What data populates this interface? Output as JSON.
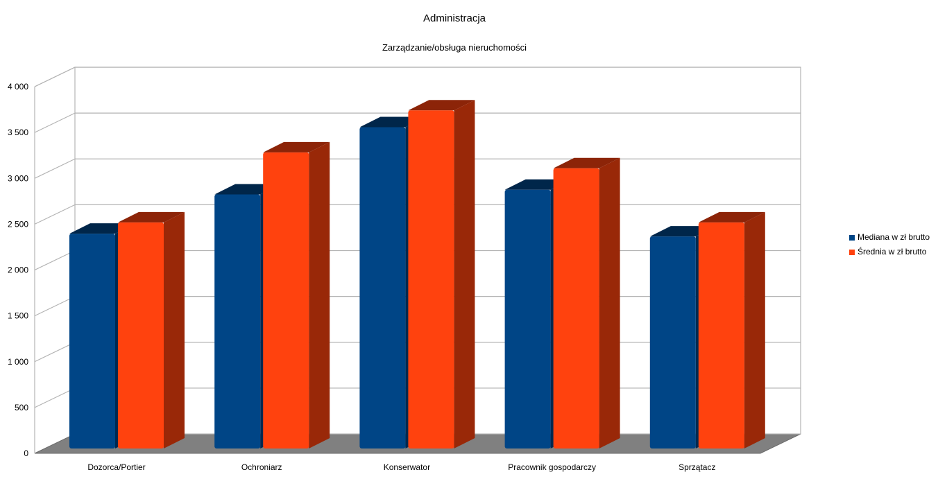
{
  "chart_data": {
    "type": "bar",
    "title": "Administracja",
    "subtitle": "Zarządzanie/obsługa nieruchomości",
    "xlabel": "",
    "ylabel": "",
    "categories": [
      "Dozorca/Portier",
      "Ochroniarz",
      "Konserwator",
      "Pracownik gospodarczy",
      "Sprzątacz"
    ],
    "series": [
      {
        "name": "Mediana w zł brutto",
        "color": "#004586",
        "values": [
          2300,
          2720,
          3440,
          2770,
          2270
        ]
      },
      {
        "name": "Średnia w zł brutto",
        "color": "#ff420e",
        "values": [
          2420,
          3170,
          3620,
          3000,
          2420
        ]
      }
    ],
    "ylim": [
      0,
      4000
    ],
    "yticks": [
      0,
      500,
      1000,
      1500,
      2000,
      2500,
      3000,
      3500,
      4000
    ],
    "ytick_labels": [
      "0",
      "500",
      "1 000",
      "1 500",
      "2 000",
      "2 500",
      "3 000",
      "3 500",
      "4 000"
    ],
    "grid": true,
    "legend_position": "right",
    "style": "3d"
  }
}
